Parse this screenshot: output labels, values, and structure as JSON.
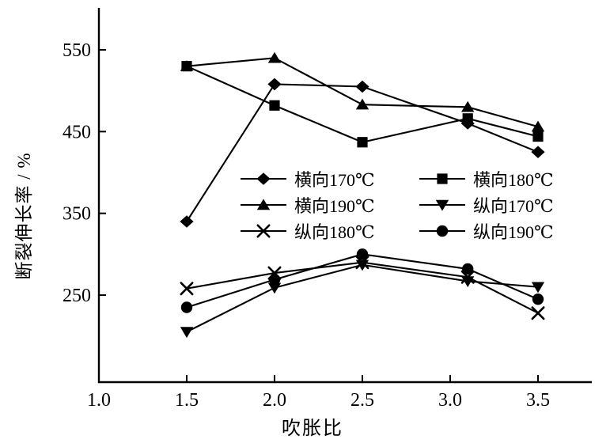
{
  "chart_data": {
    "type": "line",
    "title": "",
    "xlabel": "吹胀比",
    "ylabel": "断裂伸长率 / %",
    "x": [
      1.5,
      2.0,
      2.5,
      3.1,
      3.5
    ],
    "x_ticks": [
      "1.0",
      "1.5",
      "2.0",
      "2.5",
      "3.0",
      "3.5"
    ],
    "y_ticks": [
      "250",
      "350",
      "450",
      "550"
    ],
    "xlim": [
      1.0,
      3.8
    ],
    "ylim": [
      145,
      600
    ],
    "grid": false,
    "legend_position": "inside-center-right",
    "line_color": "#000000",
    "background_color": "#ffffff",
    "series": [
      {
        "name": "横向170℃",
        "marker": "diamond",
        "values": [
          340,
          508,
          505,
          460,
          425
        ]
      },
      {
        "name": "横向180℃",
        "marker": "square",
        "values": [
          530,
          482,
          437,
          466,
          444
        ]
      },
      {
        "name": "横向190℃",
        "marker": "triangle-up",
        "values": [
          530,
          540,
          483,
          480,
          456
        ]
      },
      {
        "name": "纵向170℃",
        "marker": "triangle-down",
        "values": [
          205,
          259,
          287,
          267,
          260
        ]
      },
      {
        "name": "纵向180℃",
        "marker": "x",
        "values": [
          258,
          277,
          290,
          272,
          228
        ]
      },
      {
        "name": "纵向190℃",
        "marker": "circle",
        "values": [
          235,
          269,
          300,
          282,
          245
        ]
      }
    ]
  }
}
